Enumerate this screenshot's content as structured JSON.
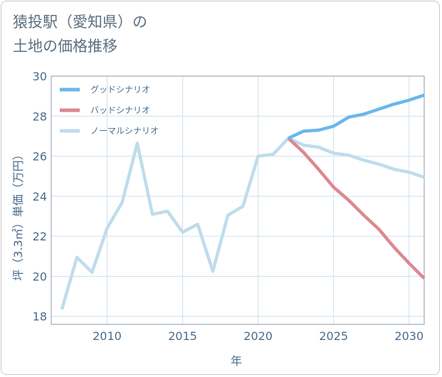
{
  "title_lines": [
    "猿投駅（愛知県）の",
    "土地の価格推移"
  ],
  "colors": {
    "good": "#6ab7ec",
    "bad": "#dc8890",
    "normal": "#bfdcec",
    "text": "#4a6c8c",
    "title": "#5d6f80",
    "grid": "#cfe0ec"
  },
  "chart_data": {
    "type": "line",
    "title": "猿投駅（愛知県）の土地の価格推移",
    "xlabel": "年",
    "ylabel": "坪（3.3㎡）単価（万円）",
    "xlim": [
      2006.3,
      2031
    ],
    "ylim": [
      17.6,
      30
    ],
    "xticks": [
      2010,
      2015,
      2020,
      2025,
      2030
    ],
    "yticks": [
      18,
      20,
      22,
      24,
      26,
      28,
      30
    ],
    "legend_position": "top-left",
    "series": [
      {
        "key": "good",
        "name": "グッドシナリオ",
        "x": [
          2022,
          2023,
          2024,
          2025,
          2026,
          2027,
          2028,
          2029,
          2030,
          2031
        ],
        "values": [
          26.9,
          27.25,
          27.3,
          27.5,
          27.95,
          28.1,
          28.35,
          28.6,
          28.8,
          29.05
        ]
      },
      {
        "key": "bad",
        "name": "バッドシナリオ",
        "x": [
          2022,
          2023,
          2024,
          2025,
          2026,
          2027,
          2028,
          2029,
          2030,
          2031
        ],
        "values": [
          26.9,
          26.2,
          25.35,
          24.45,
          23.8,
          23.05,
          22.35,
          21.45,
          20.65,
          19.9
        ]
      },
      {
        "key": "normal",
        "name": "ノーマルシナリオ",
        "x": [
          2007,
          2008,
          2009,
          2010,
          2011,
          2012,
          2013,
          2014,
          2015,
          2016,
          2017,
          2018,
          2019,
          2020,
          2021,
          2022,
          2023,
          2024,
          2025,
          2026,
          2027,
          2028,
          2029,
          2030,
          2031
        ],
        "values": [
          18.35,
          20.95,
          20.2,
          22.4,
          23.7,
          26.65,
          23.1,
          23.25,
          22.2,
          22.6,
          20.25,
          23.05,
          23.5,
          26.0,
          26.1,
          26.9,
          26.55,
          26.45,
          26.15,
          26.05,
          25.8,
          25.6,
          25.35,
          25.2,
          24.95
        ]
      }
    ]
  }
}
